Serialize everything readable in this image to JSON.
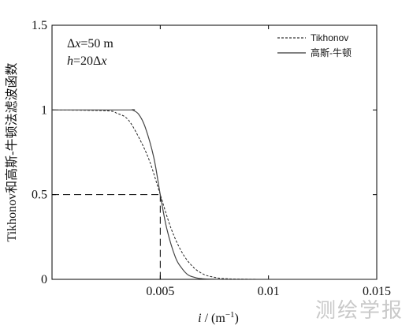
{
  "chart_data": {
    "type": "line",
    "xlabel_italic": "i",
    "xlabel_unit": " / (m",
    "xlabel_sup": "−1",
    "xlabel_close": ")",
    "ylabel": "Tikhonov和高斯-牛顿法滤波函数",
    "xlim": [
      0,
      0.015
    ],
    "ylim": [
      0,
      1.5
    ],
    "x_ticks": [
      0.005,
      0.01,
      0.015
    ],
    "x_tick_labels": [
      "0.005",
      "0.01",
      "0.015"
    ],
    "y_ticks": [
      0,
      0.5,
      1,
      1.5
    ],
    "y_tick_labels": [
      "0",
      "0.5",
      "1",
      "1.5"
    ],
    "grid": false,
    "legend_position": "top-right",
    "annotations": {
      "line1_delta": "Δ",
      "line1_var": "x",
      "line1_rest": "=50 m",
      "line2_var": "h",
      "line2_eq": "=20Δ",
      "line2_var2": "x"
    },
    "reference_lines": {
      "x": 0.005,
      "y": 0.5
    },
    "series": [
      {
        "name": "Tikhonov",
        "style": "dashed",
        "x": [
          0,
          0.0025,
          0.003,
          0.0035,
          0.004,
          0.0045,
          0.005,
          0.0055,
          0.006,
          0.0065,
          0.007,
          0.0075,
          0.008,
          0.009,
          0.01,
          0.012,
          0.015
        ],
        "y": [
          1,
          0.995,
          0.98,
          0.945,
          0.84,
          0.7,
          0.5,
          0.3,
          0.16,
          0.075,
          0.03,
          0.012,
          0.004,
          0.001,
          0,
          0,
          0
        ]
      },
      {
        "name": "高斯-牛顿",
        "style": "solid",
        "x": [
          0,
          0.0035,
          0.0037,
          0.004,
          0.0043,
          0.0047,
          0.005,
          0.0053,
          0.0057,
          0.006,
          0.0063,
          0.0067,
          0.007,
          0.0075,
          0.008,
          0.01,
          0.015
        ],
        "y": [
          1,
          1,
          1,
          0.975,
          0.9,
          0.72,
          0.5,
          0.3,
          0.13,
          0.065,
          0.025,
          0.008,
          0.003,
          0.001,
          0,
          0,
          0
        ]
      }
    ]
  },
  "watermark": "测绘学报"
}
